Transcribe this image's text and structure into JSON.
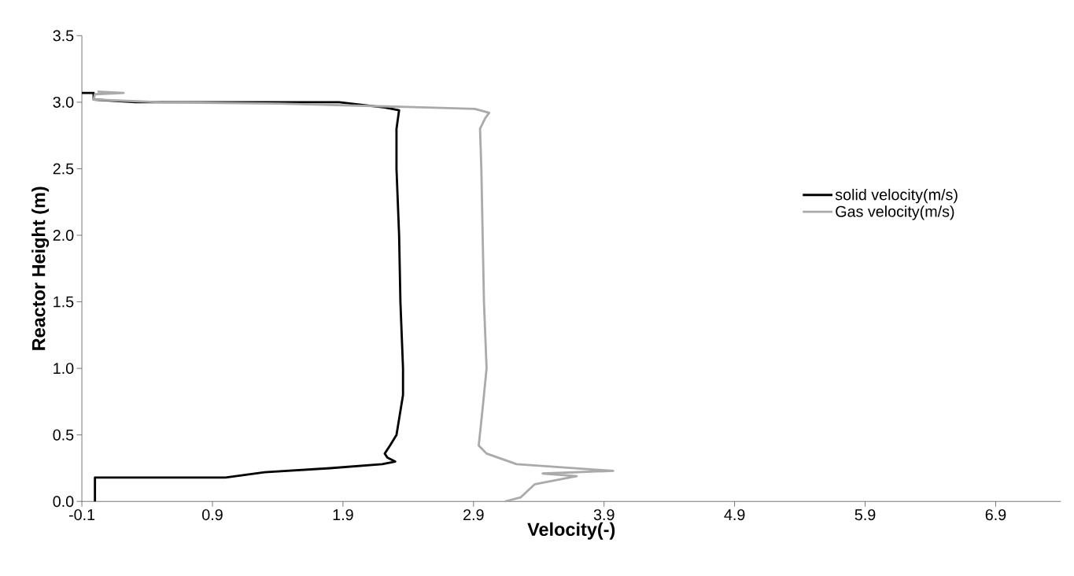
{
  "chart_data": {
    "type": "line",
    "xlabel": "Velocity(-)",
    "ylabel": "Reactor Height (m)",
    "xlim": [
      -0.1,
      7.4
    ],
    "ylim": [
      0,
      3.5
    ],
    "xticks": [
      -0.1,
      0.9,
      1.9,
      2.9,
      3.9,
      4.9,
      5.9,
      6.9
    ],
    "yticks": [
      {
        "value": 0,
        "label": "0.0"
      },
      {
        "value": 0.5,
        "label": "0.5"
      },
      {
        "value": 1,
        "label": "1.0"
      },
      {
        "value": 1.5,
        "label": "1.5"
      },
      {
        "value": 2,
        "label": "2.0"
      },
      {
        "value": 2.5,
        "label": "2.5"
      },
      {
        "value": 3,
        "label": "3.0"
      },
      {
        "value": 3.5,
        "label": "3.5"
      }
    ],
    "legend": "right",
    "grid": false,
    "marker": "none",
    "line_style": "solid",
    "series": [
      {
        "name": "solid velocity(m/s)",
        "color": "#000000",
        "x": [
          0.0,
          0.0,
          0.5,
          1.0,
          1.3,
          1.8,
          2.2,
          2.3,
          2.24,
          2.22,
          2.26,
          2.31,
          2.36,
          2.36,
          2.34,
          2.33,
          2.31,
          2.31,
          2.33,
          2.22,
          1.87,
          1.2,
          0.31,
          -0.01,
          -0.01,
          -0.1
        ],
        "values": [
          0.0,
          0.18,
          0.18,
          0.18,
          0.22,
          0.25,
          0.28,
          0.3,
          0.33,
          0.36,
          0.42,
          0.5,
          0.8,
          1.0,
          1.5,
          2.0,
          2.5,
          2.8,
          2.94,
          2.96,
          3.0,
          3.0,
          3.0,
          3.02,
          3.07,
          3.07
        ]
      },
      {
        "name": "Gas velocity(m/s)",
        "color": "#aaaaaa",
        "x": [
          3.14,
          3.26,
          3.37,
          3.69,
          3.43,
          3.97,
          3.23,
          3.0,
          2.94,
          2.97,
          3.0,
          2.98,
          2.97,
          2.96,
          2.95,
          2.99,
          3.02,
          2.91,
          2.55,
          1.41,
          0.5,
          -0.01,
          0.0,
          0.22,
          0.02
        ],
        "values": [
          0.0,
          0.03,
          0.13,
          0.19,
          0.21,
          0.23,
          0.28,
          0.36,
          0.42,
          0.7,
          1.0,
          1.5,
          2.0,
          2.5,
          2.8,
          2.88,
          2.92,
          2.95,
          2.96,
          2.99,
          3.0,
          3.02,
          3.06,
          3.07,
          3.08
        ]
      }
    ]
  }
}
